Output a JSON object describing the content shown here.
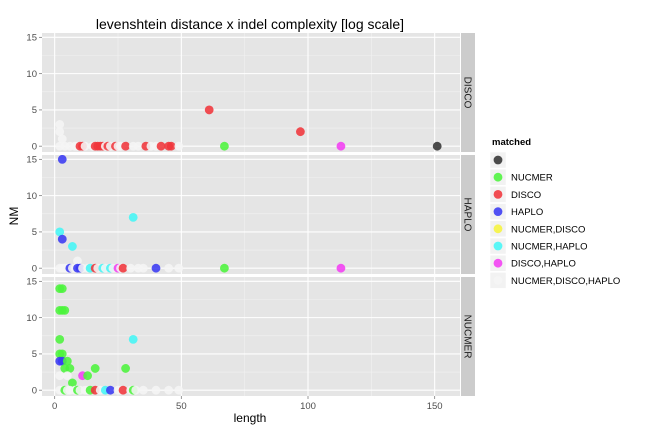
{
  "chart_data": {
    "type": "scatter",
    "title": "levenshtein distance x indel complexity [log scale]",
    "xlabel": "length",
    "ylabel": "NM",
    "xlim": [
      -5,
      160
    ],
    "ylim": [
      -0.8,
      15.6
    ],
    "x_ticks": [
      0,
      50,
      100,
      150
    ],
    "y_ticks": [
      0,
      5,
      10,
      15
    ],
    "grid": true,
    "legend": {
      "title": "matched",
      "position": "right",
      "entries": [
        {
          "label": "",
          "color": "#333333"
        },
        {
          "label": "NUCMER",
          "color": "#4cf43c"
        },
        {
          "label": "DISCO",
          "color": "#f0353b"
        },
        {
          "label": "HAPLO",
          "color": "#3a3af2"
        },
        {
          "label": "NUCMER,DISCO",
          "color": "#f6f43e"
        },
        {
          "label": "NUCMER,HAPLO",
          "color": "#44f6f6"
        },
        {
          "label": "DISCO,HAPLO",
          "color": "#f23ef2"
        },
        {
          "label": "NUCMER,DISCO,HAPLO",
          "color": "#f5f5f5"
        }
      ]
    },
    "facets": [
      {
        "label": "DISCO",
        "points": [
          {
            "x": 2,
            "y": 3,
            "g": 7
          },
          {
            "x": 2,
            "y": 2,
            "g": 7
          },
          {
            "x": 3,
            "y": 1,
            "g": 7
          },
          {
            "x": 2,
            "y": 0,
            "g": 7
          },
          {
            "x": 4,
            "y": 0,
            "g": 7
          },
          {
            "x": 6,
            "y": 0,
            "g": 7
          },
          {
            "x": 8,
            "y": 0,
            "g": 7
          },
          {
            "x": 9,
            "y": 0,
            "g": 7
          },
          {
            "x": 10,
            "y": 0,
            "g": 2
          },
          {
            "x": 11,
            "y": 0,
            "g": 2
          },
          {
            "x": 12,
            "y": 0,
            "g": 7
          },
          {
            "x": 15,
            "y": 0,
            "g": 7
          },
          {
            "x": 16,
            "y": 0,
            "g": 2
          },
          {
            "x": 17,
            "y": 0,
            "g": 2
          },
          {
            "x": 18,
            "y": 0,
            "g": 2
          },
          {
            "x": 19,
            "y": 0,
            "g": 2
          },
          {
            "x": 20,
            "y": 0,
            "g": 7
          },
          {
            "x": 21,
            "y": 0,
            "g": 2
          },
          {
            "x": 22,
            "y": 0,
            "g": 7
          },
          {
            "x": 24,
            "y": 0,
            "g": 2
          },
          {
            "x": 25,
            "y": 0,
            "g": 7
          },
          {
            "x": 26,
            "y": 0,
            "g": 7
          },
          {
            "x": 28,
            "y": 0,
            "g": 2
          },
          {
            "x": 31,
            "y": 0,
            "g": 7
          },
          {
            "x": 33,
            "y": 0,
            "g": 7
          },
          {
            "x": 36,
            "y": 0,
            "g": 2
          },
          {
            "x": 38,
            "y": 0,
            "g": 7
          },
          {
            "x": 40,
            "y": 0,
            "g": 7
          },
          {
            "x": 42,
            "y": 0,
            "g": 2
          },
          {
            "x": 45,
            "y": 0,
            "g": 2
          },
          {
            "x": 46,
            "y": 0,
            "g": 2
          },
          {
            "x": 49,
            "y": 0,
            "g": 7
          },
          {
            "x": 61,
            "y": 5,
            "g": 2
          },
          {
            "x": 67,
            "y": 0,
            "g": 1
          },
          {
            "x": 97,
            "y": 2,
            "g": 2
          },
          {
            "x": 113,
            "y": 0,
            "g": 6
          },
          {
            "x": 151,
            "y": 0,
            "g": 0
          }
        ]
      },
      {
        "label": "HAPLO",
        "points": [
          {
            "x": 3,
            "y": 15,
            "g": 3
          },
          {
            "x": 31,
            "y": 7,
            "g": 5
          },
          {
            "x": 2,
            "y": 5,
            "g": 5
          },
          {
            "x": 3,
            "y": 4,
            "g": 3
          },
          {
            "x": 7,
            "y": 3,
            "g": 5
          },
          {
            "x": 9,
            "y": 1,
            "g": 7
          },
          {
            "x": 2,
            "y": 0,
            "g": 7
          },
          {
            "x": 3,
            "y": 0,
            "g": 7
          },
          {
            "x": 4,
            "y": 0,
            "g": 7
          },
          {
            "x": 5,
            "y": 0,
            "g": 7
          },
          {
            "x": 6,
            "y": 0,
            "g": 3
          },
          {
            "x": 7,
            "y": 0,
            "g": 7
          },
          {
            "x": 8,
            "y": 0,
            "g": 7
          },
          {
            "x": 9,
            "y": 0,
            "g": 3
          },
          {
            "x": 10,
            "y": 0,
            "g": 3
          },
          {
            "x": 11,
            "y": 0,
            "g": 7
          },
          {
            "x": 13,
            "y": 0,
            "g": 7
          },
          {
            "x": 14,
            "y": 0,
            "g": 5
          },
          {
            "x": 16,
            "y": 0,
            "g": 2
          },
          {
            "x": 17,
            "y": 0,
            "g": 7
          },
          {
            "x": 19,
            "y": 0,
            "g": 5
          },
          {
            "x": 20,
            "y": 0,
            "g": 7
          },
          {
            "x": 22,
            "y": 0,
            "g": 5
          },
          {
            "x": 23,
            "y": 0,
            "g": 7
          },
          {
            "x": 25,
            "y": 0,
            "g": 6
          },
          {
            "x": 26,
            "y": 0,
            "g": 7
          },
          {
            "x": 27,
            "y": 0,
            "g": 2
          },
          {
            "x": 30,
            "y": 0,
            "g": 7
          },
          {
            "x": 33,
            "y": 0,
            "g": 7
          },
          {
            "x": 35,
            "y": 0,
            "g": 7
          },
          {
            "x": 40,
            "y": 0,
            "g": 3
          },
          {
            "x": 45,
            "y": 0,
            "g": 7
          },
          {
            "x": 49,
            "y": 0,
            "g": 7
          },
          {
            "x": 67,
            "y": 0,
            "g": 1
          },
          {
            "x": 113,
            "y": 0,
            "g": 6
          }
        ]
      },
      {
        "label": "NUCMER",
        "points": [
          {
            "x": 2,
            "y": 14,
            "g": 1
          },
          {
            "x": 3,
            "y": 14,
            "g": 1
          },
          {
            "x": 2,
            "y": 11,
            "g": 1
          },
          {
            "x": 3,
            "y": 11,
            "g": 1
          },
          {
            "x": 4,
            "y": 11,
            "g": 1
          },
          {
            "x": 2,
            "y": 7,
            "g": 1
          },
          {
            "x": 31,
            "y": 7,
            "g": 5
          },
          {
            "x": 2,
            "y": 5,
            "g": 1
          },
          {
            "x": 3,
            "y": 5,
            "g": 1
          },
          {
            "x": 2,
            "y": 4,
            "g": 3
          },
          {
            "x": 3,
            "y": 4,
            "g": 3
          },
          {
            "x": 5,
            "y": 4,
            "g": 1
          },
          {
            "x": 4,
            "y": 3,
            "g": 1
          },
          {
            "x": 6,
            "y": 3,
            "g": 1
          },
          {
            "x": 16,
            "y": 3,
            "g": 1
          },
          {
            "x": 28,
            "y": 3,
            "g": 1
          },
          {
            "x": 2,
            "y": 2,
            "g": 7
          },
          {
            "x": 5,
            "y": 2,
            "g": 7
          },
          {
            "x": 11,
            "y": 2,
            "g": 6
          },
          {
            "x": 13,
            "y": 2,
            "g": 1
          },
          {
            "x": 7,
            "y": 1,
            "g": 1
          },
          {
            "x": 2,
            "y": 0,
            "g": 7
          },
          {
            "x": 3,
            "y": 0,
            "g": 7
          },
          {
            "x": 4,
            "y": 0,
            "g": 1
          },
          {
            "x": 5,
            "y": 0,
            "g": 7
          },
          {
            "x": 6,
            "y": 0,
            "g": 7
          },
          {
            "x": 8,
            "y": 0,
            "g": 7
          },
          {
            "x": 9,
            "y": 0,
            "g": 1
          },
          {
            "x": 10,
            "y": 0,
            "g": 7
          },
          {
            "x": 12,
            "y": 0,
            "g": 7
          },
          {
            "x": 13,
            "y": 0,
            "g": 7
          },
          {
            "x": 14,
            "y": 0,
            "g": 1
          },
          {
            "x": 16,
            "y": 0,
            "g": 2
          },
          {
            "x": 18,
            "y": 0,
            "g": 7
          },
          {
            "x": 20,
            "y": 0,
            "g": 5
          },
          {
            "x": 22,
            "y": 0,
            "g": 3
          },
          {
            "x": 25,
            "y": 0,
            "g": 7
          },
          {
            "x": 26,
            "y": 0,
            "g": 7
          },
          {
            "x": 27,
            "y": 0,
            "g": 2
          },
          {
            "x": 30,
            "y": 0,
            "g": 7
          },
          {
            "x": 31,
            "y": 0,
            "g": 1
          },
          {
            "x": 32,
            "y": 0,
            "g": 7
          },
          {
            "x": 35,
            "y": 0,
            "g": 7
          },
          {
            "x": 40,
            "y": 0,
            "g": 7
          },
          {
            "x": 45,
            "y": 0,
            "g": 7
          },
          {
            "x": 49,
            "y": 0,
            "g": 7
          }
        ]
      }
    ]
  }
}
